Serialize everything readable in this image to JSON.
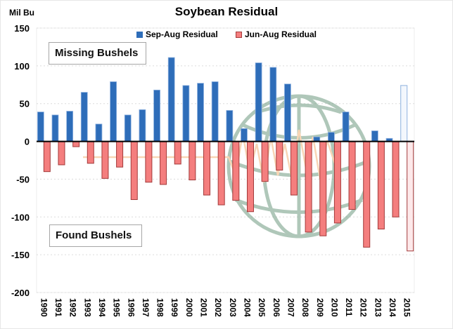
{
  "chart_data": {
    "type": "bar",
    "title": "Soybean Residual",
    "ylabel": "Mil Bu",
    "xlabel": "",
    "ylim": [
      -200,
      150
    ],
    "yticks": [
      150,
      100,
      50,
      0,
      -50,
      -100,
      -150,
      -200
    ],
    "grid": true,
    "legend_position": "top-center",
    "categories": [
      "1990",
      "1991",
      "1992",
      "1993",
      "1994",
      "1995",
      "1996",
      "1997",
      "1998",
      "1999",
      "2000",
      "2001",
      "2002",
      "2003",
      "2004",
      "2005",
      "2006",
      "2007",
      "2008",
      "2009",
      "2010",
      "2011",
      "2012",
      "2013",
      "2014",
      "2015"
    ],
    "series": [
      {
        "name": "Sep-Aug Residual",
        "color": "#2E6DB9",
        "values": [
          39,
          35,
          40,
          65,
          23,
          79,
          35,
          42,
          68,
          111,
          74,
          77,
          79,
          41,
          17,
          104,
          98,
          76,
          0,
          6,
          12,
          39,
          0,
          14,
          4,
          74
        ],
        "projected_last": true
      },
      {
        "name": "Jun-Aug Residual",
        "color": "#F47E7E",
        "values": [
          -40,
          -31,
          -7,
          -29,
          -49,
          -34,
          -77,
          -54,
          -57,
          -30,
          -51,
          -71,
          -84,
          -78,
          -93,
          -53,
          -38,
          -71,
          -120,
          -125,
          -108,
          -90,
          -140,
          -116,
          -100,
          -145
        ],
        "projected_last": true
      }
    ],
    "annotations": [
      "Missing Bushels",
      "Found Bushels"
    ]
  },
  "labels": {
    "title": "Soybean Residual",
    "unit": "Mil Bu",
    "legend_sep": "Sep-Aug Residual",
    "legend_jun": "Jun-Aug Residual",
    "missing": "Missing Bushels",
    "found": "Found Bushels"
  },
  "colors": {
    "blue": "#2E6DB9",
    "red": "#F47E7E",
    "red_border": "#A33A3A",
    "watermark": "#9BBBA6"
  }
}
